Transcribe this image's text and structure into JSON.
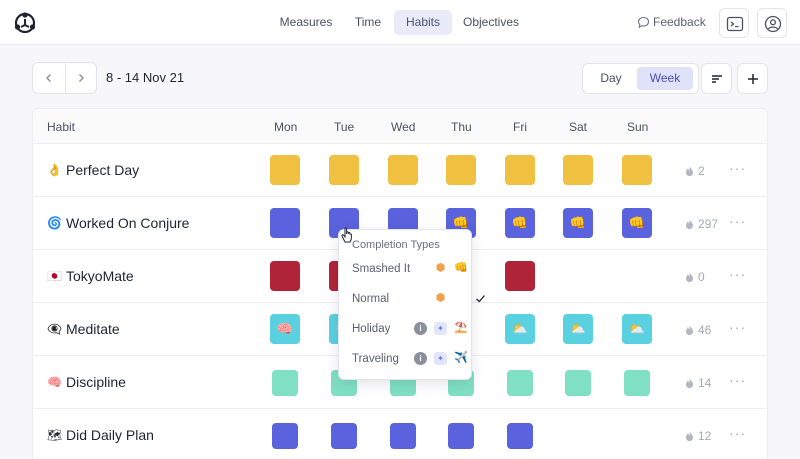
{
  "nav": {
    "tabs": [
      {
        "label": "Measures",
        "active": false
      },
      {
        "label": "Time",
        "active": false
      },
      {
        "label": "Habits",
        "active": true
      },
      {
        "label": "Objectives",
        "active": false
      }
    ],
    "feedback_label": "Feedback"
  },
  "toolbar": {
    "date_range": "8 - 14 Nov 21",
    "view_options": [
      {
        "label": "Day",
        "active": false
      },
      {
        "label": "Week",
        "active": true
      }
    ]
  },
  "table": {
    "headers": {
      "habit": "Habit",
      "days": [
        "Mon",
        "Tue",
        "Wed",
        "Thu",
        "Fri",
        "Sat",
        "Sun"
      ]
    },
    "rows": [
      {
        "icon": "👌",
        "name": "Perfect Day",
        "count": "2",
        "color": "#f0c041",
        "cells": [
          "filled",
          "filled",
          "filled",
          "filled",
          "filled",
          "filled",
          "filled"
        ]
      },
      {
        "icon": "🌀",
        "name": "Worked On Conjure",
        "count": "297",
        "color": "#5a63dd",
        "cells": [
          "filled",
          "filled",
          "filled",
          "smashed",
          "smashed",
          "smashed",
          "smashed"
        ]
      },
      {
        "icon": "🇯🇵",
        "name": "TokyoMate",
        "count": "0",
        "color": "#b0243a",
        "cells": [
          "filled",
          "filled",
          "hidden",
          "hidden",
          "filled",
          "empty",
          "empty"
        ]
      },
      {
        "icon": "👁‍🗨",
        "name": "Meditate",
        "count": "46",
        "color": "#5ad1e0",
        "cells": [
          "brain",
          "brain",
          "hidden",
          "hidden",
          "cloud",
          "cloud",
          "cloud"
        ]
      },
      {
        "icon": "🧠",
        "name": "Discipline",
        "count": "14",
        "color": "#7fe0c3",
        "cells": [
          "small",
          "small",
          "small",
          "small",
          "small",
          "small",
          "small"
        ]
      },
      {
        "icon": "🗺",
        "name": "Did Daily Plan",
        "count": "12",
        "color": "#5a63dd",
        "cells": [
          "small",
          "small",
          "small",
          "small",
          "small",
          "empty",
          "empty"
        ]
      }
    ]
  },
  "popover": {
    "title": "Completion Types",
    "items": [
      {
        "label": "Smashed It",
        "emoji": "👊",
        "info": false,
        "selected": false
      },
      {
        "label": "Normal",
        "emoji": "",
        "info": false,
        "selected": true
      },
      {
        "label": "Holiday",
        "emoji": "⛱️",
        "info": true,
        "selected": false
      },
      {
        "label": "Traveling",
        "emoji": "✈️",
        "info": true,
        "selected": false
      }
    ]
  },
  "emoji": {
    "smashed": "👊",
    "brain": "🧠",
    "cloud": "⛅"
  }
}
